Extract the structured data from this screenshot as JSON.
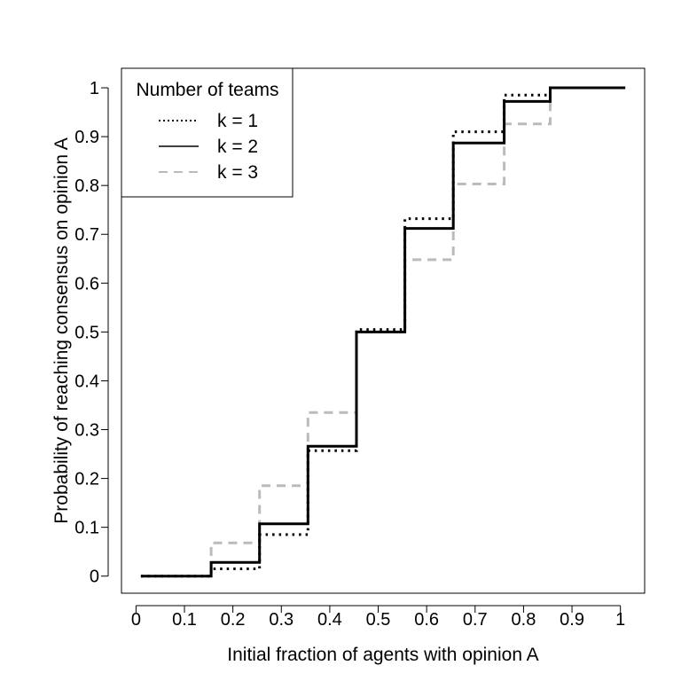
{
  "chart_data": {
    "type": "line",
    "xlabel": "Initial fraction of agents with opinion A",
    "ylabel": "Probability of reaching consensus on opinion A",
    "xlim": [
      -0.03,
      1.05
    ],
    "ylim": [
      -0.035,
      1.04
    ],
    "xticks": [
      0,
      0.1,
      0.2,
      0.3,
      0.4,
      0.5,
      0.6,
      0.7,
      0.8,
      0.9,
      1
    ],
    "xtick_labels": [
      "0",
      "0.1",
      "0.2",
      "0.3",
      "0.4",
      "0.5",
      "0.6",
      "0.7",
      "0.8",
      "0.9",
      "1"
    ],
    "yticks": [
      0,
      0.1,
      0.2,
      0.3,
      0.4,
      0.5,
      0.6,
      0.7,
      0.8,
      0.9,
      1
    ],
    "ytick_labels": [
      "0",
      "0.1",
      "0.2",
      "0.3",
      "0.4",
      "0.5",
      "0.6",
      "0.7",
      "0.8",
      "0.9",
      "1"
    ],
    "grid": false,
    "legend": {
      "title": "Number of teams",
      "placement": "top-left"
    },
    "series": [
      {
        "name": "k = 1",
        "color": "#000000",
        "style": "dotted",
        "x": [
          0.01,
          0.155,
          0.155,
          0.255,
          0.255,
          0.355,
          0.355,
          0.455,
          0.455,
          0.555,
          0.555,
          0.655,
          0.655,
          0.76,
          0.76,
          0.855,
          0.855,
          1.01
        ],
        "y": [
          0,
          0,
          0.015,
          0.015,
          0.085,
          0.085,
          0.257,
          0.257,
          0.505,
          0.505,
          0.732,
          0.732,
          0.91,
          0.91,
          0.985,
          0.985,
          1,
          1
        ]
      },
      {
        "name": "k = 2",
        "color": "#000000",
        "style": "solid",
        "x": [
          0.01,
          0.155,
          0.155,
          0.255,
          0.255,
          0.355,
          0.355,
          0.455,
          0.455,
          0.555,
          0.555,
          0.655,
          0.655,
          0.76,
          0.76,
          0.855,
          0.855,
          1.01
        ],
        "y": [
          0,
          0,
          0.028,
          0.028,
          0.107,
          0.107,
          0.266,
          0.266,
          0.5,
          0.5,
          0.712,
          0.712,
          0.887,
          0.887,
          0.972,
          0.972,
          1,
          1
        ]
      },
      {
        "name": "k = 3",
        "color": "#bbbbbb",
        "style": "dashed",
        "x": [
          0.01,
          0.155,
          0.155,
          0.255,
          0.255,
          0.355,
          0.355,
          0.455,
          0.455,
          0.555,
          0.555,
          0.655,
          0.655,
          0.76,
          0.76,
          0.855,
          0.855,
          1.01
        ],
        "y": [
          0,
          0,
          0.068,
          0.068,
          0.185,
          0.185,
          0.335,
          0.335,
          0.5,
          0.5,
          0.648,
          0.648,
          0.803,
          0.803,
          0.926,
          0.926,
          1,
          1
        ]
      }
    ]
  }
}
